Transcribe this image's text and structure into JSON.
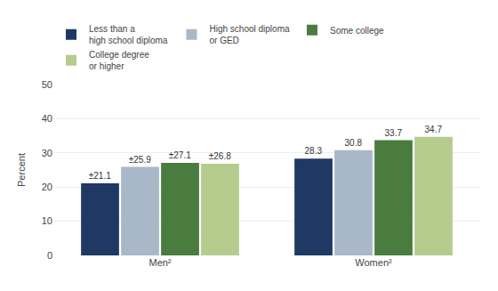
{
  "chart_data": {
    "type": "bar",
    "categories": [
      "Men²",
      "Women²"
    ],
    "series": [
      {
        "name": "Less than a\nhigh school diploma",
        "color": "#1f3864",
        "values": [
          21.1,
          28.3
        ],
        "value_labels": [
          "±21.1",
          "28.3"
        ]
      },
      {
        "name": "High school diploma\nor GED",
        "color": "#a8b8c8",
        "values": [
          25.9,
          30.8
        ],
        "value_labels": [
          "±25.9",
          "30.8"
        ]
      },
      {
        "name": "Some college",
        "color": "#4a7c3f",
        "values": [
          27.1,
          33.7
        ],
        "value_labels": [
          "±27.1",
          "33.7"
        ]
      },
      {
        "name": "College degree\nor higher",
        "color": "#b5cc8e",
        "values": [
          26.8,
          34.7
        ],
        "value_labels": [
          "±26.8",
          "34.7"
        ]
      }
    ],
    "ylabel": "Percent",
    "ylim": [
      0,
      50
    ],
    "yticks": [
      0,
      10,
      20,
      30,
      40,
      50
    ],
    "grid": true,
    "legend": "upper left",
    "data_labels": true
  }
}
